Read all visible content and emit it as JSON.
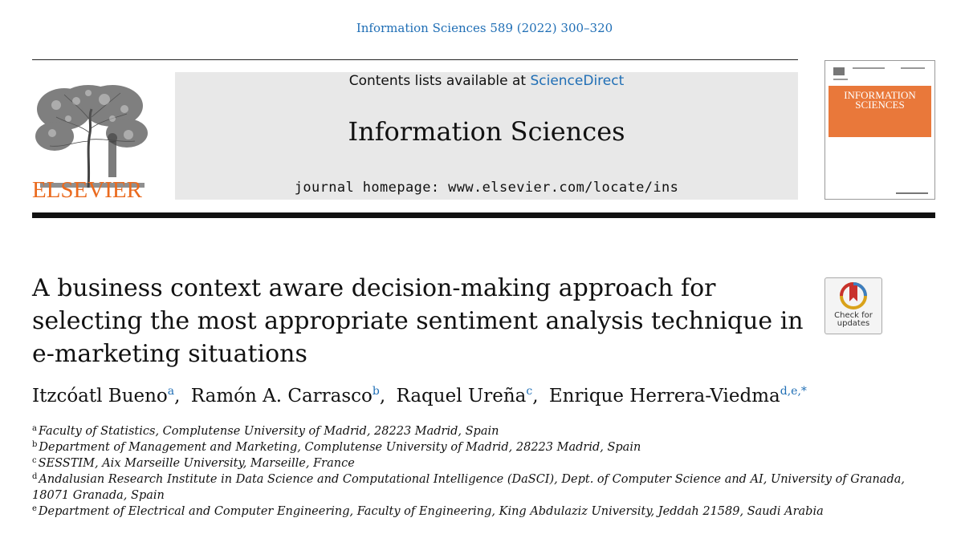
{
  "citation": "Information Sciences 589 (2022) 300–320",
  "publisher": {
    "logo_word": "ELSEVIER"
  },
  "banner": {
    "contents_prefix": "Contents lists available at ",
    "contents_link": "ScienceDirect",
    "journal": "Information Sciences",
    "homepage": "journal homepage: www.elsevier.com/locate/ins"
  },
  "cover": {
    "title_line1": "INFORMATION",
    "title_line2": "SCIENCES",
    "accent_color": "#e9783a"
  },
  "article": {
    "title": "A business context aware decision-making approach for selecting the most appropriate sentiment analysis technique in e-marketing situations",
    "check_updates": "Check for updates",
    "authors": [
      {
        "name": "Itzcóatl Bueno",
        "sup": "a"
      },
      {
        "name": "Ramón A. Carrasco",
        "sup": "b"
      },
      {
        "name": "Raquel Ureña",
        "sup": "c"
      },
      {
        "name": "Enrique Herrera-Viedma",
        "sup": "d,e,*"
      }
    ],
    "affiliations": [
      {
        "key": "a",
        "text": "Faculty of Statistics, Complutense University of Madrid, 28223 Madrid, Spain"
      },
      {
        "key": "b",
        "text": "Department of Management and Marketing, Complutense University of Madrid, 28223 Madrid, Spain"
      },
      {
        "key": "c",
        "text": "SESSTIM, Aix Marseille University, Marseille, France"
      },
      {
        "key": "d",
        "text": "Andalusian Research Institute in Data Science and Computational Intelligence (DaSCI), Dept. of Computer Science and AI, University of Granada, 18071 Granada, Spain"
      },
      {
        "key": "e",
        "text": "Department of Electrical and Computer Engineering, Faculty of Engineering, King Abdulaziz University, Jeddah 21589, Saudi Arabia"
      }
    ]
  },
  "colors": {
    "link": "#1f6eb5",
    "elsevier_orange": "#ea6a1e",
    "banner_bg": "#e8e8e8"
  }
}
